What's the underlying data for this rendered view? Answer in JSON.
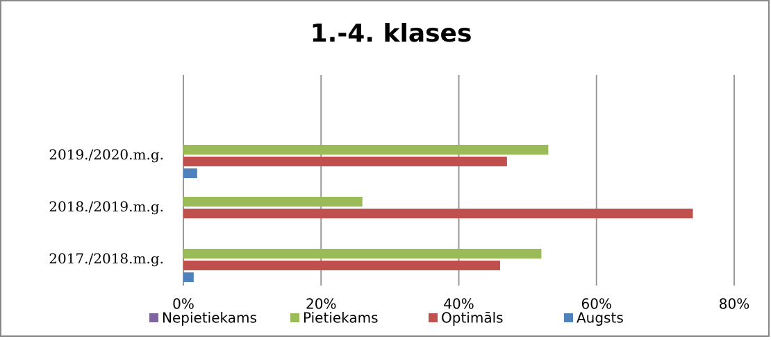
{
  "chart_data": {
    "type": "bar",
    "orientation": "horizontal",
    "title": "1.-4. klases",
    "categories": [
      "2017./2018.m.g.",
      "2018./2019.m.g.",
      "2019./2020.m.g."
    ],
    "series": [
      {
        "name": "Nepietiekams",
        "color": "#8064a2",
        "values": [
          0,
          0,
          0
        ]
      },
      {
        "name": "Pietiekams",
        "color": "#9bbb59",
        "values": [
          52,
          26,
          53
        ]
      },
      {
        "name": "Optimāls",
        "color": "#c0504d",
        "values": [
          46,
          74,
          47
        ]
      },
      {
        "name": "Augsts",
        "color": "#4f81bd",
        "values": [
          1.5,
          0,
          2
        ]
      }
    ],
    "xlim": [
      0,
      80
    ],
    "xticks": [
      {
        "value": 0,
        "label": "0%"
      },
      {
        "value": 20,
        "label": "20%"
      },
      {
        "value": 40,
        "label": "40%"
      },
      {
        "value": 60,
        "label": "60%"
      },
      {
        "value": 80,
        "label": "80%"
      }
    ],
    "grid": true,
    "legend": "bottom"
  }
}
